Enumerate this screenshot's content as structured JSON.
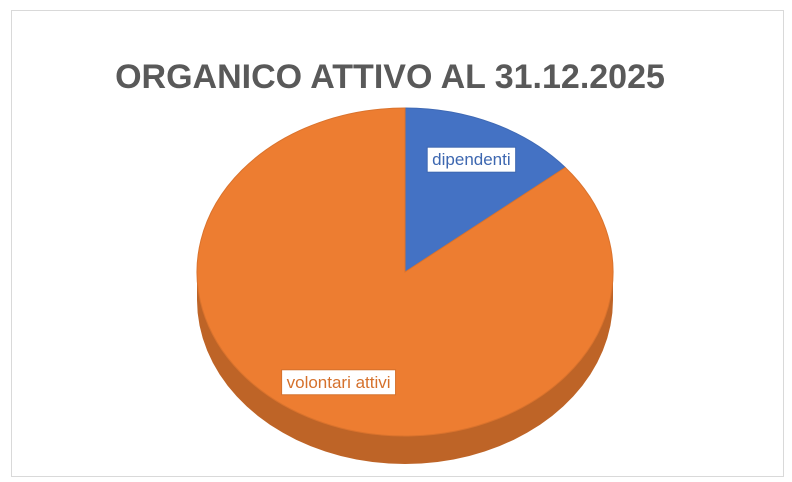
{
  "chart_data": {
    "type": "pie",
    "title": "ORGANICO ATTIVO AL 31.12.2025",
    "categories": [
      "dipendenti",
      "volontari attivi"
    ],
    "values": [
      14,
      86
    ],
    "colors": [
      "#4472c4",
      "#ed7d31"
    ]
  }
}
